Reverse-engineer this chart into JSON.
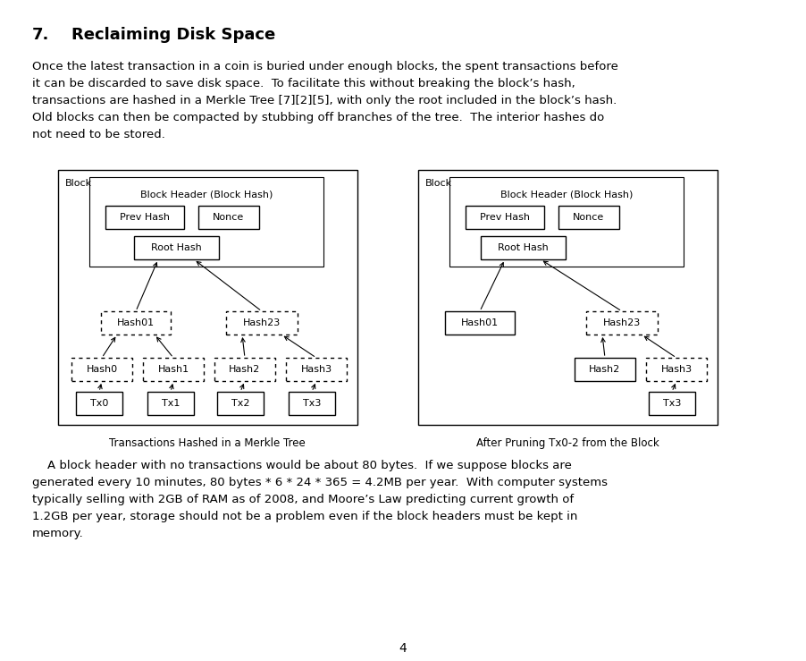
{
  "title_num": "7.",
  "title_text": "Reclaiming Disk Space",
  "paragraph1": "Once the latest transaction in a coin is buried under enough blocks, the spent transactions before it can be discarded to save disk space.  To facilitate this without breaking the block’s hash, transactions are hashed in a Merkle Tree [7][2][5], with only the root included in the block’s hash. Old blocks can then be compacted by stubbing off branches of the tree.  The interior hashes do not need to be stored.",
  "paragraph2": "A block header with no transactions would be about 80 bytes.  If we suppose blocks are generated every 10 minutes, 80 bytes * 6 * 24 * 365 = 4.2MB per year.  With computer systems typically selling with 2GB of RAM as of 2008, and Moore’s Law predicting current growth of 1.2GB per year, storage should not be a problem even if the block headers must be kept in memory.",
  "caption1": "Transactions Hashed in a Merkle Tree",
  "caption2": "After Pruning Tx0-2 from the Block",
  "page_number": "4",
  "bg_color": "#ffffff",
  "text_color": "#000000"
}
